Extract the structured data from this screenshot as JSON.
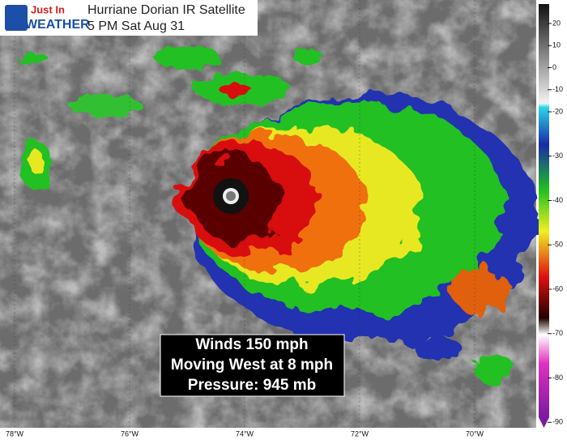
{
  "header": {
    "logo_top": "Just In",
    "logo_bottom": "WEATHER",
    "title": "Hurriane Dorian IR Satellite",
    "subtitle": "5 PM Sat Aug 31"
  },
  "info": [
    "Winds 150 mph",
    "Moving West at 8 mph",
    "Pressure: 945 mb"
  ],
  "longitudes": [
    "78°W",
    "76°W",
    "74°W",
    "72°W",
    "70°W"
  ],
  "colorbar": {
    "ticks": [
      20,
      10,
      0,
      -10,
      -20,
      -30,
      -40,
      -50,
      -60,
      -70,
      -80,
      -90
    ]
  }
}
